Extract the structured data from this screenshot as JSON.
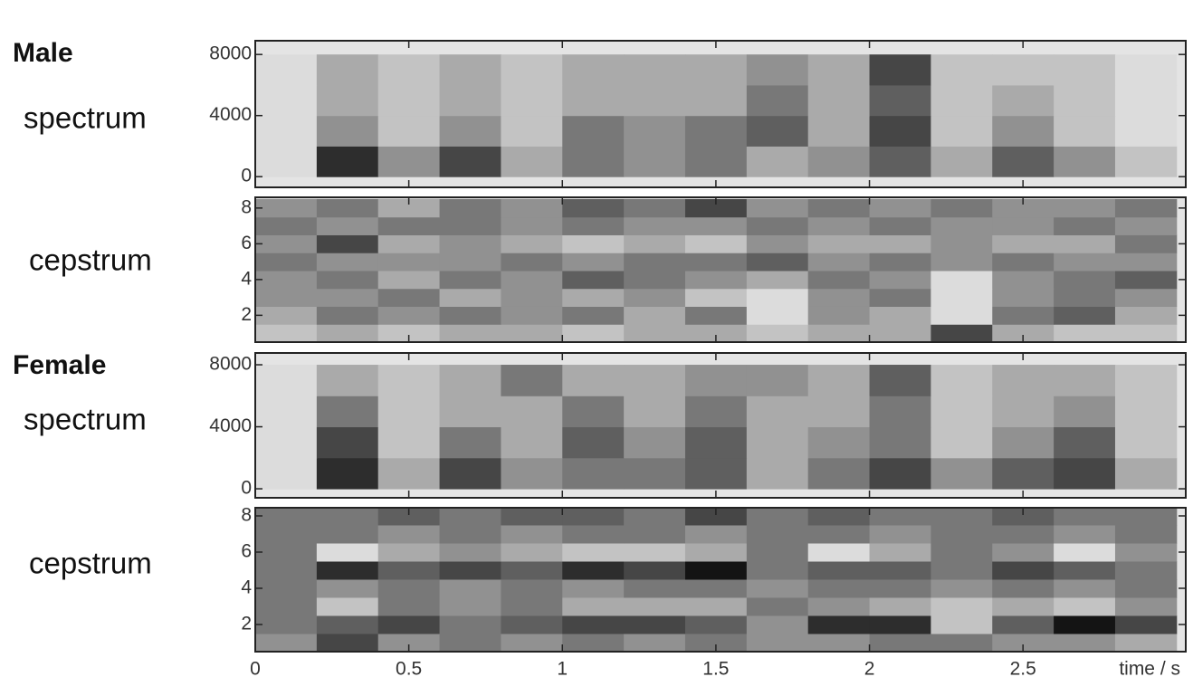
{
  "chart_data": [
    {
      "type": "heatmap",
      "title": "Male",
      "ylabel": "spectrum",
      "xlim": [
        0,
        3.03
      ],
      "ylim": [
        -700,
        8900
      ],
      "yticks": [
        0,
        4000,
        8000
      ],
      "xbins": [
        0,
        0.2,
        0.4,
        0.6,
        0.8,
        1.0,
        1.2,
        1.4,
        1.6,
        1.8,
        2.0,
        2.2,
        2.4,
        2.6,
        2.8,
        3.0
      ],
      "ybins": [
        0,
        2000,
        4000,
        6000,
        8000
      ],
      "z": [
        [
          1,
          8,
          4,
          7,
          3,
          5,
          4,
          5,
          3,
          4,
          6,
          3,
          6,
          4,
          2
        ],
        [
          1,
          4,
          2,
          4,
          2,
          5,
          4,
          5,
          6,
          3,
          7,
          2,
          4,
          2,
          1
        ],
        [
          1,
          3,
          2,
          3,
          2,
          3,
          3,
          3,
          5,
          3,
          6,
          2,
          3,
          2,
          1
        ],
        [
          1,
          3,
          2,
          3,
          2,
          3,
          3,
          3,
          4,
          3,
          7,
          2,
          2,
          2,
          1
        ]
      ]
    },
    {
      "type": "heatmap",
      "ylabel": "cepstrum",
      "xlim": [
        0,
        3.03
      ],
      "ylim": [
        0.5,
        8.6
      ],
      "yticks": [
        2,
        4,
        6,
        8
      ],
      "xbins": [
        0,
        0.2,
        0.4,
        0.6,
        0.8,
        1.0,
        1.2,
        1.4,
        1.6,
        1.8,
        2.0,
        2.2,
        2.4,
        2.6,
        2.8,
        3.0
      ],
      "ybins": [
        0.5,
        1.5,
        2.5,
        3.5,
        4.5,
        5.5,
        6.5,
        7.5,
        8.5
      ],
      "z": [
        [
          2,
          3,
          2,
          3,
          3,
          2,
          3,
          3,
          2,
          3,
          3,
          7,
          3,
          2,
          2
        ],
        [
          3,
          5,
          4,
          5,
          4,
          5,
          3,
          5,
          1,
          4,
          3,
          1,
          5,
          6,
          3
        ],
        [
          4,
          4,
          5,
          3,
          4,
          3,
          4,
          2,
          1,
          4,
          5,
          1,
          4,
          5,
          4
        ],
        [
          4,
          5,
          3,
          5,
          4,
          6,
          5,
          4,
          3,
          5,
          4,
          1,
          4,
          5,
          6
        ],
        [
          5,
          4,
          4,
          4,
          5,
          4,
          5,
          5,
          6,
          4,
          5,
          4,
          5,
          4,
          4
        ],
        [
          4,
          7,
          3,
          4,
          3,
          2,
          3,
          2,
          4,
          3,
          3,
          4,
          3,
          3,
          5
        ],
        [
          5,
          4,
          5,
          5,
          4,
          5,
          4,
          4,
          5,
          4,
          5,
          4,
          4,
          5,
          4
        ],
        [
          4,
          5,
          3,
          5,
          4,
          6,
          5,
          7,
          4,
          5,
          4,
          5,
          4,
          4,
          5
        ]
      ]
    },
    {
      "type": "heatmap",
      "title": "Female",
      "ylabel": "spectrum",
      "xlim": [
        0,
        3.03
      ],
      "ylim": [
        -580,
        8760
      ],
      "yticks": [
        0,
        4000,
        8000
      ],
      "xbins": [
        0,
        0.2,
        0.4,
        0.6,
        0.8,
        1.0,
        1.2,
        1.4,
        1.6,
        1.8,
        2.0,
        2.2,
        2.4,
        2.6,
        2.8,
        3.0
      ],
      "ybins": [
        0,
        2000,
        4000,
        6000,
        8000
      ],
      "z": [
        [
          1,
          8,
          3,
          7,
          4,
          5,
          5,
          6,
          3,
          5,
          7,
          4,
          6,
          7,
          3
        ],
        [
          1,
          7,
          2,
          5,
          3,
          6,
          4,
          6,
          3,
          4,
          5,
          2,
          4,
          6,
          2
        ],
        [
          1,
          5,
          2,
          3,
          3,
          5,
          3,
          5,
          3,
          3,
          5,
          2,
          3,
          4,
          2
        ],
        [
          1,
          3,
          2,
          3,
          5,
          3,
          3,
          4,
          4,
          3,
          6,
          2,
          3,
          3,
          2
        ]
      ]
    },
    {
      "type": "heatmap",
      "ylabel": "cepstrum",
      "xlabel": "time / s",
      "xlim": [
        0,
        3.03
      ],
      "ylim": [
        0.5,
        8.45
      ],
      "xticks": [
        0,
        0.5,
        1,
        1.5,
        2,
        2.5
      ],
      "yticks": [
        2,
        4,
        6,
        8
      ],
      "xbins": [
        0,
        0.2,
        0.4,
        0.6,
        0.8,
        1.0,
        1.2,
        1.4,
        1.6,
        1.8,
        2.0,
        2.2,
        2.4,
        2.6,
        2.8,
        3.0
      ],
      "ybins": [
        0.5,
        1.5,
        2.5,
        3.5,
        4.5,
        5.5,
        6.5,
        7.5,
        8.5
      ],
      "z": [
        [
          4,
          7,
          4,
          5,
          4,
          5,
          4,
          5,
          4,
          4,
          5,
          5,
          4,
          4,
          3
        ],
        [
          5,
          6,
          7,
          5,
          6,
          7,
          7,
          6,
          4,
          8,
          8,
          2,
          6,
          9,
          7
        ],
        [
          5,
          2,
          5,
          4,
          5,
          3,
          3,
          3,
          5,
          4,
          3,
          2,
          3,
          2,
          4
        ],
        [
          5,
          4,
          5,
          4,
          5,
          4,
          5,
          5,
          4,
          5,
          5,
          4,
          5,
          4,
          5
        ],
        [
          5,
          8,
          6,
          7,
          6,
          8,
          7,
          9,
          5,
          6,
          6,
          5,
          7,
          6,
          5
        ],
        [
          5,
          1,
          3,
          4,
          3,
          2,
          2,
          3,
          5,
          1,
          3,
          5,
          4,
          1,
          4
        ],
        [
          5,
          5,
          4,
          5,
          4,
          5,
          5,
          4,
          5,
          5,
          4,
          5,
          5,
          4,
          5
        ],
        [
          5,
          5,
          6,
          5,
          6,
          6,
          5,
          7,
          5,
          6,
          5,
          5,
          6,
          5,
          5
        ]
      ]
    }
  ]
}
